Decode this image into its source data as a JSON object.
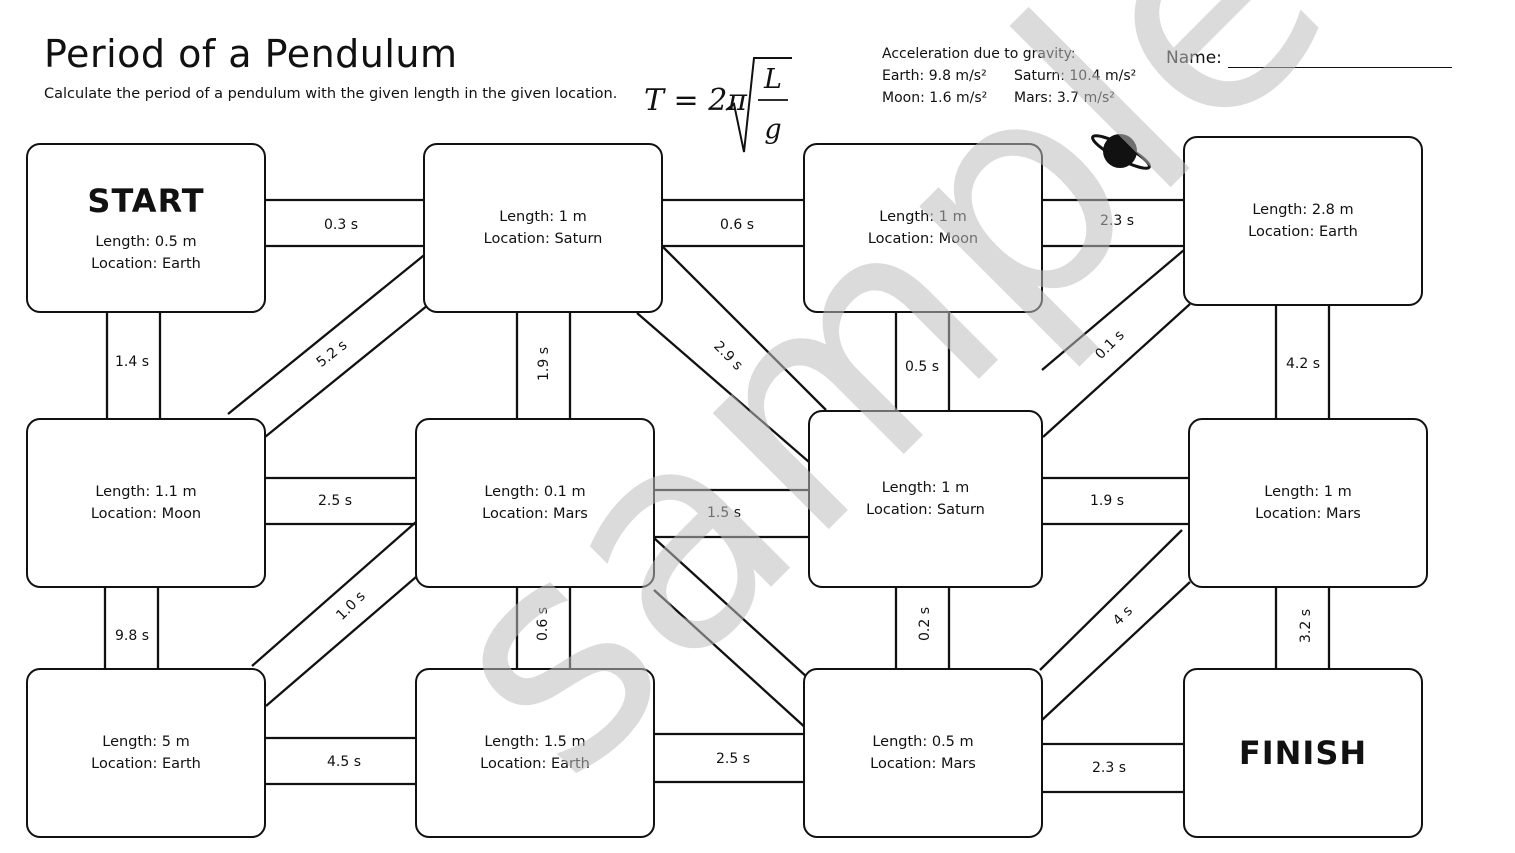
{
  "header": {
    "title": "Period of a Pendulum",
    "subtitle": "Calculate the period of a pendulum with the given length in the given location.",
    "formula": {
      "lhs": "T = 2π",
      "num": "L",
      "den": "g"
    },
    "gravity_heading": "Acceleration due to gravity:",
    "gravity_row1_a": "Earth: 9.8 m/s²",
    "gravity_row1_b": "Saturn: 10.4 m/s²",
    "gravity_row2_a": "Moon: 1.6 m/s²",
    "gravity_row2_b": "Mars: 3.7 m/s²",
    "name_label": "Name:"
  },
  "watermark": "sample",
  "boxes": [
    {
      "id": "b00",
      "heading": "START",
      "line1": "Length: 0.5 m",
      "line2": "Location: Earth"
    },
    {
      "id": "b01",
      "line1": "Length: 1 m",
      "line2": "Location: Saturn"
    },
    {
      "id": "b02",
      "line1": "Length: 1 m",
      "line2": "Location: Moon"
    },
    {
      "id": "b03",
      "line1": "Length: 2.8 m",
      "line2": "Location: Earth"
    },
    {
      "id": "b10",
      "line1": "Length: 1.1 m",
      "line2": "Location: Moon"
    },
    {
      "id": "b11",
      "line1": "Length: 0.1 m",
      "line2": "Location: Mars"
    },
    {
      "id": "b12",
      "line1": "Length: 1 m",
      "line2": "Location: Saturn"
    },
    {
      "id": "b13",
      "line1": "Length: 1 m",
      "line2": "Location: Mars"
    },
    {
      "id": "b20",
      "line1": "Length: 5 m",
      "line2": "Location: Earth"
    },
    {
      "id": "b21",
      "line1": "Length: 1.5 m",
      "line2": "Location: Earth"
    },
    {
      "id": "b22",
      "line1": "Length: 0.5 m",
      "line2": "Location: Mars"
    },
    {
      "id": "b23",
      "heading": "FINISH"
    }
  ],
  "paths": [
    {
      "id": "p1",
      "label": "0.3 s"
    },
    {
      "id": "p2",
      "label": "0.6 s"
    },
    {
      "id": "p3",
      "label": "2.3 s"
    },
    {
      "id": "p4",
      "label": "1.4 s"
    },
    {
      "id": "p5",
      "label": "5.2 s"
    },
    {
      "id": "p6",
      "label": "1.9 s"
    },
    {
      "id": "p7",
      "label": "2.9 s"
    },
    {
      "id": "p8",
      "label": "0.5 s"
    },
    {
      "id": "p9",
      "label": "0.1 s"
    },
    {
      "id": "p10",
      "label": "4.2 s"
    },
    {
      "id": "p11",
      "label": "2.5 s"
    },
    {
      "id": "p12",
      "label": "1.5 s"
    },
    {
      "id": "p13",
      "label": "1.9 s"
    },
    {
      "id": "p14",
      "label": "9.8 s"
    },
    {
      "id": "p15",
      "label": "1.0 s"
    },
    {
      "id": "p16",
      "label": "0.6 s"
    },
    {
      "id": "p17",
      "label": "0.2 s"
    },
    {
      "id": "p18",
      "label": "4 s"
    },
    {
      "id": "p19",
      "label": "3.2 s"
    },
    {
      "id": "p20",
      "label": "4.5 s"
    },
    {
      "id": "p21",
      "label": "2.5 s"
    },
    {
      "id": "p22",
      "label": "2.3 s"
    }
  ]
}
